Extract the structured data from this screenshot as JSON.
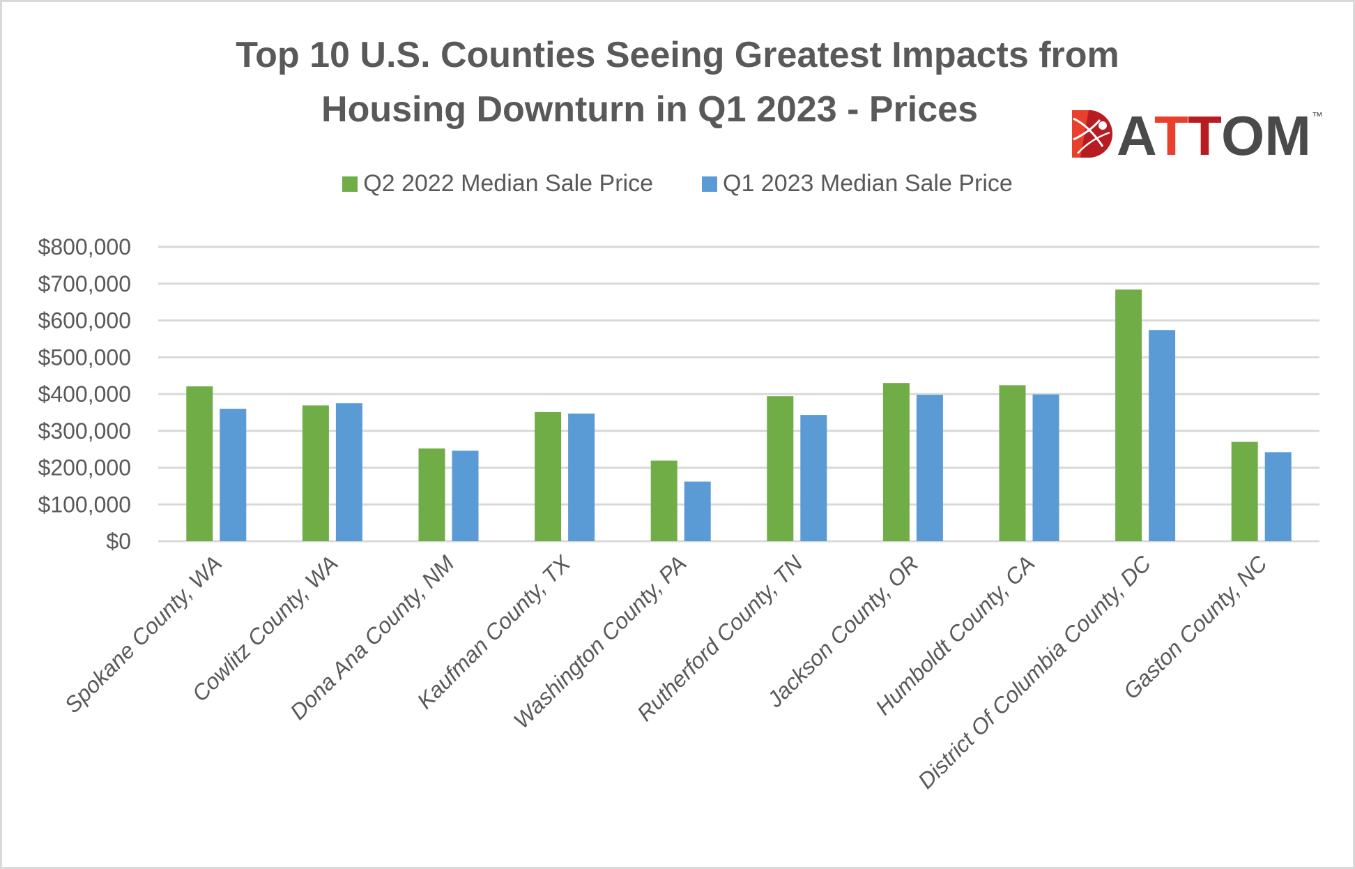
{
  "chart_data": {
    "type": "bar",
    "title": "Top 10 U.S. Counties Seeing Greatest Impacts from Housing Downturn in Q1 2023 - Prices",
    "title_lines": [
      "Top 10 U.S. Counties Seeing Greatest Impacts from",
      "Housing Downturn in Q1 2023 - Prices"
    ],
    "xlabel": "",
    "ylabel": "",
    "ylim": [
      0,
      800000
    ],
    "yticks": [
      0,
      100000,
      200000,
      300000,
      400000,
      500000,
      600000,
      700000,
      800000
    ],
    "ytick_labels": [
      "$0",
      "$100,000",
      "$200,000",
      "$300,000",
      "$400,000",
      "$500,000",
      "$600,000",
      "$700,000",
      "$800,000"
    ],
    "grid": true,
    "legend_position": "top-center",
    "categories": [
      "Spokane County, WA",
      "Cowlitz County, WA",
      "Dona Ana County, NM",
      "Kaufman County, TX",
      "Washington County, PA",
      "Rutherford County, TN",
      "Jackson County, OR",
      "Humboldt County, CA",
      "District Of Columbia County, DC",
      "Gaston County, NC"
    ],
    "series": [
      {
        "name": "Q2 2022 Median Sale Price",
        "color": "#70ad47",
        "values": [
          421000,
          369000,
          252000,
          351000,
          219000,
          394000,
          430000,
          424000,
          684000,
          270000
        ]
      },
      {
        "name": "Q1 2023 Median Sale Price",
        "color": "#5b9bd5",
        "values": [
          360000,
          375000,
          246000,
          347000,
          162000,
          343000,
          398000,
          399000,
          574000,
          242000
        ]
      }
    ]
  },
  "logo": {
    "text_a": "A",
    "text_t1": "T",
    "text_t2": "T",
    "text_om": "OM",
    "trademark": "™",
    "colors": {
      "dark": "#4a4a4a",
      "red": "#e8402c",
      "darkred": "#b71c23"
    }
  }
}
